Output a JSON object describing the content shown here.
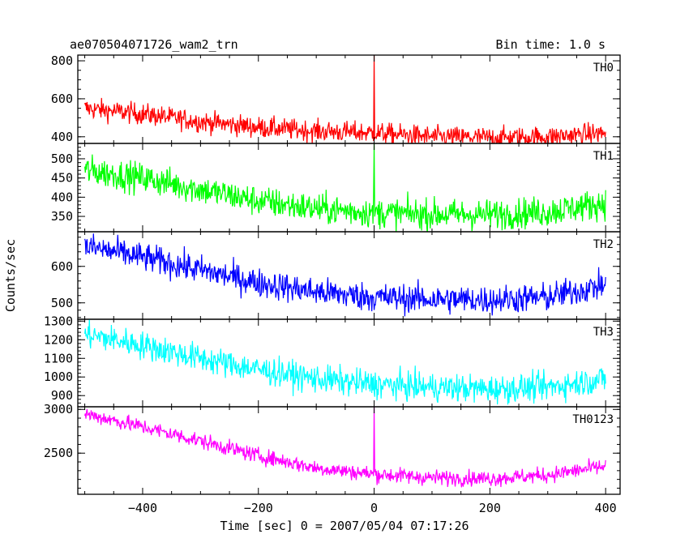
{
  "chart_data": {
    "type": "line",
    "title": "ae070504071726_wam2_trn",
    "bin_time": "Bin time: 1.0 s",
    "xlabel": "Time [sec] 0 = 2007/05/04 07:17:26",
    "ylabel": "Counts/sec",
    "xlim": [
      -512,
      425
    ],
    "x_ticks": [
      -400,
      -200,
      0,
      200,
      400
    ],
    "grid": false,
    "panels": [
      {
        "name": "TH0",
        "color": "#ff0000",
        "ylim": [
          365,
          830
        ],
        "y_ticks": [
          400,
          600,
          800
        ],
        "y_minor_step": 50,
        "trend": [
          [
            -500,
            550
          ],
          [
            -400,
            520
          ],
          [
            -300,
            480
          ],
          [
            -200,
            450
          ],
          [
            -100,
            430
          ],
          [
            0,
            420
          ],
          [
            100,
            400
          ],
          [
            200,
            395
          ],
          [
            300,
            400
          ],
          [
            400,
            420
          ]
        ],
        "noise": 28,
        "spike": {
          "x": 0,
          "y": 830
        }
      },
      {
        "name": "TH1",
        "color": "#00ff00",
        "ylim": [
          310,
          540
        ],
        "y_ticks": [
          350,
          400,
          450,
          500
        ],
        "y_minor_step": 10,
        "trend": [
          [
            -500,
            470
          ],
          [
            -400,
            450
          ],
          [
            -300,
            420
          ],
          [
            -200,
            390
          ],
          [
            -100,
            370
          ],
          [
            0,
            360
          ],
          [
            100,
            355
          ],
          [
            200,
            355
          ],
          [
            300,
            362
          ],
          [
            400,
            385
          ]
        ],
        "noise": 20,
        "spike": {
          "x": 0,
          "y": 540
        }
      },
      {
        "name": "TH2",
        "color": "#0000ff",
        "ylim": [
          455,
          695
        ],
        "y_ticks": [
          500,
          600
        ],
        "y_minor_step": 20,
        "trend": [
          [
            -500,
            655
          ],
          [
            -400,
            625
          ],
          [
            -300,
            590
          ],
          [
            -200,
            555
          ],
          [
            -100,
            530
          ],
          [
            0,
            515
          ],
          [
            100,
            510
          ],
          [
            200,
            508
          ],
          [
            300,
            515
          ],
          [
            400,
            550
          ]
        ],
        "noise": 20,
        "spike": null
      },
      {
        "name": "TH3",
        "color": "#00ffff",
        "ylim": [
          840,
          1310
        ],
        "y_ticks": [
          900,
          1000,
          1100,
          1200,
          1300
        ],
        "y_minor_step": 20,
        "trend": [
          [
            -500,
            1230
          ],
          [
            -400,
            1170
          ],
          [
            -300,
            1100
          ],
          [
            -200,
            1040
          ],
          [
            -100,
            990
          ],
          [
            0,
            960
          ],
          [
            100,
            945
          ],
          [
            200,
            935
          ],
          [
            300,
            945
          ],
          [
            400,
            990
          ]
        ],
        "noise": 38,
        "spike": null
      },
      {
        "name": "TH0123",
        "color": "#ff00ff",
        "ylim": [
          2030,
          3030
        ],
        "y_ticks": [
          2500,
          3000
        ],
        "y_minor_step": 100,
        "trend": [
          [
            -500,
            2950
          ],
          [
            -400,
            2800
          ],
          [
            -300,
            2640
          ],
          [
            -200,
            2470
          ],
          [
            -100,
            2330
          ],
          [
            0,
            2260
          ],
          [
            100,
            2220
          ],
          [
            200,
            2210
          ],
          [
            300,
            2250
          ],
          [
            400,
            2350
          ]
        ],
        "noise": 45,
        "spike": {
          "x": 0,
          "y": 3030
        }
      }
    ]
  }
}
